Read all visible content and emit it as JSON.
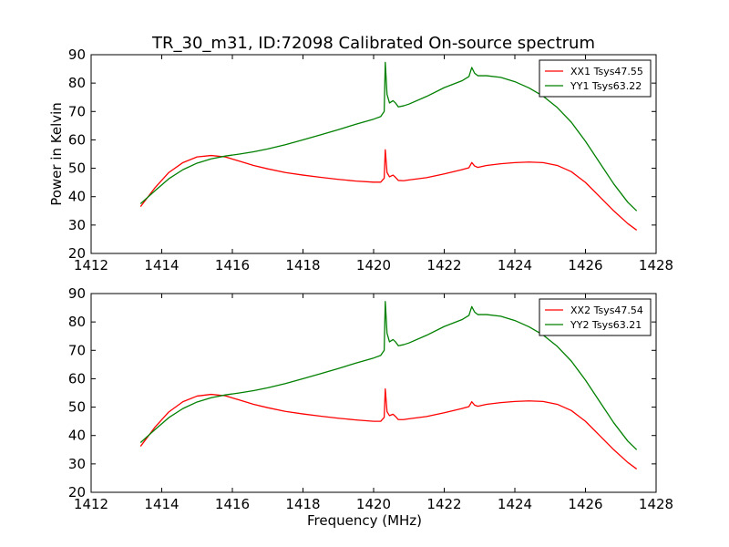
{
  "title": "TR_30_m31, ID:72098 Calibrated On-source spectrum",
  "chart_data": [
    {
      "type": "line",
      "title": "TR_30_m31, ID:72098 Calibrated On-source spectrum",
      "xlabel": "",
      "ylabel": "Power in Kelvin",
      "xlim": [
        1412,
        1428
      ],
      "ylim": [
        20,
        90
      ],
      "xticks": [
        1412,
        1414,
        1416,
        1418,
        1420,
        1422,
        1424,
        1426,
        1428
      ],
      "yticks": [
        20,
        30,
        40,
        50,
        60,
        70,
        80,
        90
      ],
      "grid": false,
      "legend_position": "top-right",
      "series": [
        {
          "name": "XX1 Tsys47.55",
          "color": "#ff0000",
          "x": [
            1413.4,
            1413.8,
            1414.2,
            1414.6,
            1415.0,
            1415.4,
            1415.8,
            1416.2,
            1416.6,
            1417.0,
            1417.5,
            1418.0,
            1418.5,
            1419.0,
            1419.5,
            1420.0,
            1420.2,
            1420.3,
            1420.33,
            1420.38,
            1420.45,
            1420.55,
            1420.62,
            1420.7,
            1420.85,
            1421.0,
            1421.5,
            1422.0,
            1422.5,
            1422.7,
            1422.78,
            1422.86,
            1422.95,
            1423.2,
            1423.6,
            1424.0,
            1424.4,
            1424.8,
            1425.2,
            1425.6,
            1426.0,
            1426.4,
            1426.8,
            1427.2,
            1427.45
          ],
          "y": [
            36.5,
            43.0,
            48.5,
            52.0,
            54.0,
            54.5,
            54.0,
            52.5,
            51.0,
            49.8,
            48.5,
            47.6,
            46.8,
            46.1,
            45.5,
            45.1,
            45.1,
            46.5,
            56.5,
            48.5,
            47.0,
            47.6,
            46.8,
            45.7,
            45.6,
            45.9,
            46.7,
            48.0,
            49.5,
            50.2,
            52.0,
            50.8,
            50.3,
            51.0,
            51.6,
            52.0,
            52.2,
            52.0,
            51.0,
            48.8,
            45.0,
            40.0,
            35.0,
            30.5,
            28.2
          ]
        },
        {
          "name": "YY1 Tsys63.22",
          "color": "#008000",
          "x": [
            1413.4,
            1413.8,
            1414.2,
            1414.6,
            1415.0,
            1415.4,
            1415.8,
            1416.2,
            1416.6,
            1417.0,
            1417.5,
            1418.0,
            1418.5,
            1419.0,
            1419.5,
            1420.0,
            1420.2,
            1420.3,
            1420.33,
            1420.38,
            1420.45,
            1420.55,
            1420.62,
            1420.7,
            1420.85,
            1421.0,
            1421.5,
            1422.0,
            1422.5,
            1422.7,
            1422.78,
            1422.86,
            1422.95,
            1423.2,
            1423.6,
            1424.0,
            1424.4,
            1424.8,
            1425.2,
            1425.6,
            1426.0,
            1426.4,
            1426.8,
            1427.2,
            1427.45
          ],
          "y": [
            37.5,
            42.0,
            46.3,
            49.5,
            51.8,
            53.3,
            54.3,
            55.0,
            55.8,
            56.8,
            58.3,
            60.0,
            61.8,
            63.6,
            65.5,
            67.3,
            68.2,
            70.0,
            87.3,
            76.0,
            73.0,
            73.8,
            73.0,
            71.6,
            72.0,
            72.6,
            75.3,
            78.4,
            80.8,
            82.3,
            85.5,
            83.5,
            82.6,
            82.6,
            82.0,
            80.5,
            78.3,
            75.4,
            71.4,
            66.2,
            59.5,
            52.0,
            44.5,
            38.0,
            35.0
          ]
        }
      ]
    },
    {
      "type": "line",
      "title": "",
      "xlabel": "Frequency (MHz)",
      "ylabel": "",
      "xlim": [
        1412,
        1428
      ],
      "ylim": [
        20,
        90
      ],
      "xticks": [
        1412,
        1414,
        1416,
        1418,
        1420,
        1422,
        1424,
        1426,
        1428
      ],
      "yticks": [
        20,
        30,
        40,
        50,
        60,
        70,
        80,
        90
      ],
      "grid": false,
      "legend_position": "top-right",
      "series": [
        {
          "name": "XX2 Tsys47.54",
          "color": "#ff0000",
          "x": [
            1413.4,
            1413.8,
            1414.2,
            1414.6,
            1415.0,
            1415.4,
            1415.8,
            1416.2,
            1416.6,
            1417.0,
            1417.5,
            1418.0,
            1418.5,
            1419.0,
            1419.5,
            1420.0,
            1420.2,
            1420.3,
            1420.33,
            1420.38,
            1420.45,
            1420.55,
            1420.62,
            1420.7,
            1420.85,
            1421.0,
            1421.5,
            1422.0,
            1422.5,
            1422.7,
            1422.78,
            1422.86,
            1422.95,
            1423.2,
            1423.6,
            1424.0,
            1424.4,
            1424.8,
            1425.2,
            1425.6,
            1426.0,
            1426.4,
            1426.8,
            1427.2,
            1427.45
          ],
          "y": [
            36.2,
            42.8,
            48.3,
            51.9,
            53.9,
            54.5,
            54.0,
            52.5,
            51.0,
            49.8,
            48.5,
            47.6,
            46.8,
            46.1,
            45.5,
            45.0,
            45.0,
            46.4,
            56.4,
            48.4,
            47.0,
            47.5,
            46.7,
            45.6,
            45.6,
            45.9,
            46.7,
            48.0,
            49.5,
            50.2,
            51.9,
            50.7,
            50.3,
            51.0,
            51.6,
            52.0,
            52.2,
            52.0,
            51.0,
            48.8,
            45.0,
            40.0,
            35.0,
            30.5,
            28.2
          ]
        },
        {
          "name": "YY2 Tsys63.21",
          "color": "#008000",
          "x": [
            1413.4,
            1413.8,
            1414.2,
            1414.6,
            1415.0,
            1415.4,
            1415.8,
            1416.2,
            1416.6,
            1417.0,
            1417.5,
            1418.0,
            1418.5,
            1419.0,
            1419.5,
            1420.0,
            1420.2,
            1420.3,
            1420.33,
            1420.38,
            1420.45,
            1420.55,
            1420.62,
            1420.7,
            1420.85,
            1421.0,
            1421.5,
            1422.0,
            1422.5,
            1422.7,
            1422.78,
            1422.86,
            1422.95,
            1423.2,
            1423.6,
            1424.0,
            1424.4,
            1424.8,
            1425.2,
            1425.6,
            1426.0,
            1426.4,
            1426.8,
            1427.2,
            1427.45
          ],
          "y": [
            37.5,
            42.0,
            46.3,
            49.5,
            51.8,
            53.3,
            54.3,
            55.0,
            55.8,
            56.8,
            58.3,
            60.0,
            61.8,
            63.6,
            65.5,
            67.3,
            68.2,
            70.0,
            87.2,
            76.0,
            73.0,
            73.8,
            73.0,
            71.6,
            72.0,
            72.6,
            75.3,
            78.4,
            80.8,
            82.3,
            85.4,
            83.5,
            82.6,
            82.6,
            82.0,
            80.5,
            78.3,
            75.4,
            71.4,
            66.2,
            59.5,
            52.0,
            44.5,
            38.0,
            35.0
          ]
        }
      ]
    }
  ]
}
